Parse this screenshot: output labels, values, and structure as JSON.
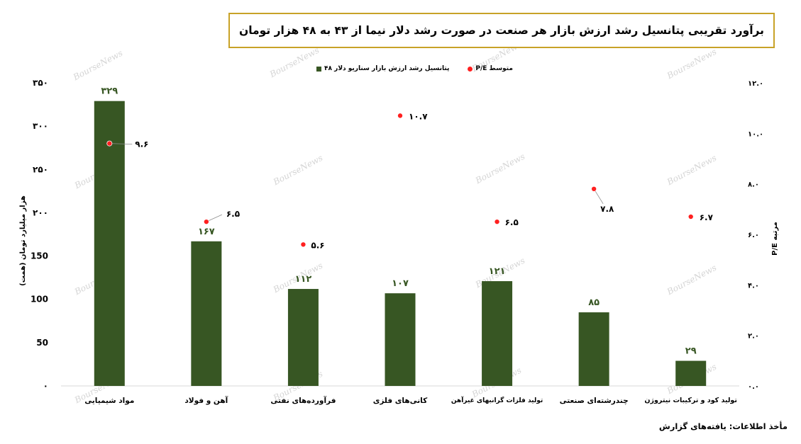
{
  "source": "مأخذ اطلاعات: یافته‌های گزارش",
  "watermark": "BourseNews",
  "colors": {
    "bar": "#375623",
    "bar_label": "#375623",
    "dot": "#ff2020",
    "title_border": "#c8a227",
    "axis_line": "#d9d9d9",
    "leader": "#8c8c8c",
    "watermark": "#c4c4c4"
  },
  "chart_data": {
    "type": "bar",
    "title": "برآورد تقریبی پتانسیل رشد ارزش بازار هر صنعت در صورت رشد دلار نیما از ۴۳ به ۴۸ هزار تومان",
    "categories": [
      "مواد شیمیایی",
      "آهن و فولاد",
      "فرآورده‌های نفتی",
      "کانی‌های فلزی",
      "تولید فلزات گرانبهای غیرآهن",
      "چندرشته‌ای صنعتی",
      "تولید کود و ترکیبات نیتروژن"
    ],
    "series": [
      {
        "name": "پتانسیل رشد ارزش بازار سناریو دلار ۴۸",
        "type": "bar",
        "axis": "left",
        "values": [
          329,
          167,
          112,
          107,
          121,
          85,
          29
        ],
        "labels": [
          "۳۲۹",
          "۱۶۷",
          "۱۱۲",
          "۱۰۷",
          "۱۲۱",
          "۸۵",
          "۲۹"
        ]
      },
      {
        "name": "متوسط P/E",
        "type": "scatter",
        "axis": "right",
        "values": [
          9.6,
          6.5,
          5.6,
          10.7,
          6.5,
          7.8,
          6.7
        ],
        "labels": [
          "۹.۶",
          "۶.۵",
          "۵.۶",
          "۱۰.۷",
          "۶.۵",
          "۷.۸",
          "۶.۷"
        ]
      }
    ],
    "ylabel": "هزار میلیارد تومان (همت)",
    "ylim": [
      0,
      350
    ],
    "yticks": [
      {
        "value": 0,
        "label": "۰"
      },
      {
        "value": 50,
        "label": "50"
      },
      {
        "value": 100,
        "label": "100"
      },
      {
        "value": 150,
        "label": "150"
      },
      {
        "value": 200,
        "label": "۲۰۰"
      },
      {
        "value": 250,
        "label": "۲۵۰"
      },
      {
        "value": 300,
        "label": "۳۰۰"
      },
      {
        "value": 350,
        "label": "۳۵۰"
      }
    ],
    "y2label": "مرتبه P/E",
    "y2lim": [
      0,
      12
    ],
    "y2ticks": [
      {
        "value": 0,
        "label": "۰.۰"
      },
      {
        "value": 2,
        "label": "۲.۰"
      },
      {
        "value": 4,
        "label": "۴.۰"
      },
      {
        "value": 6,
        "label": "۶.۰"
      },
      {
        "value": 8,
        "label": "۸.۰"
      },
      {
        "value": 10,
        "label": "۱۰.۰"
      },
      {
        "value": 12,
        "label": "۱۲.۰"
      }
    ],
    "legend": "top-center",
    "grid": false
  }
}
